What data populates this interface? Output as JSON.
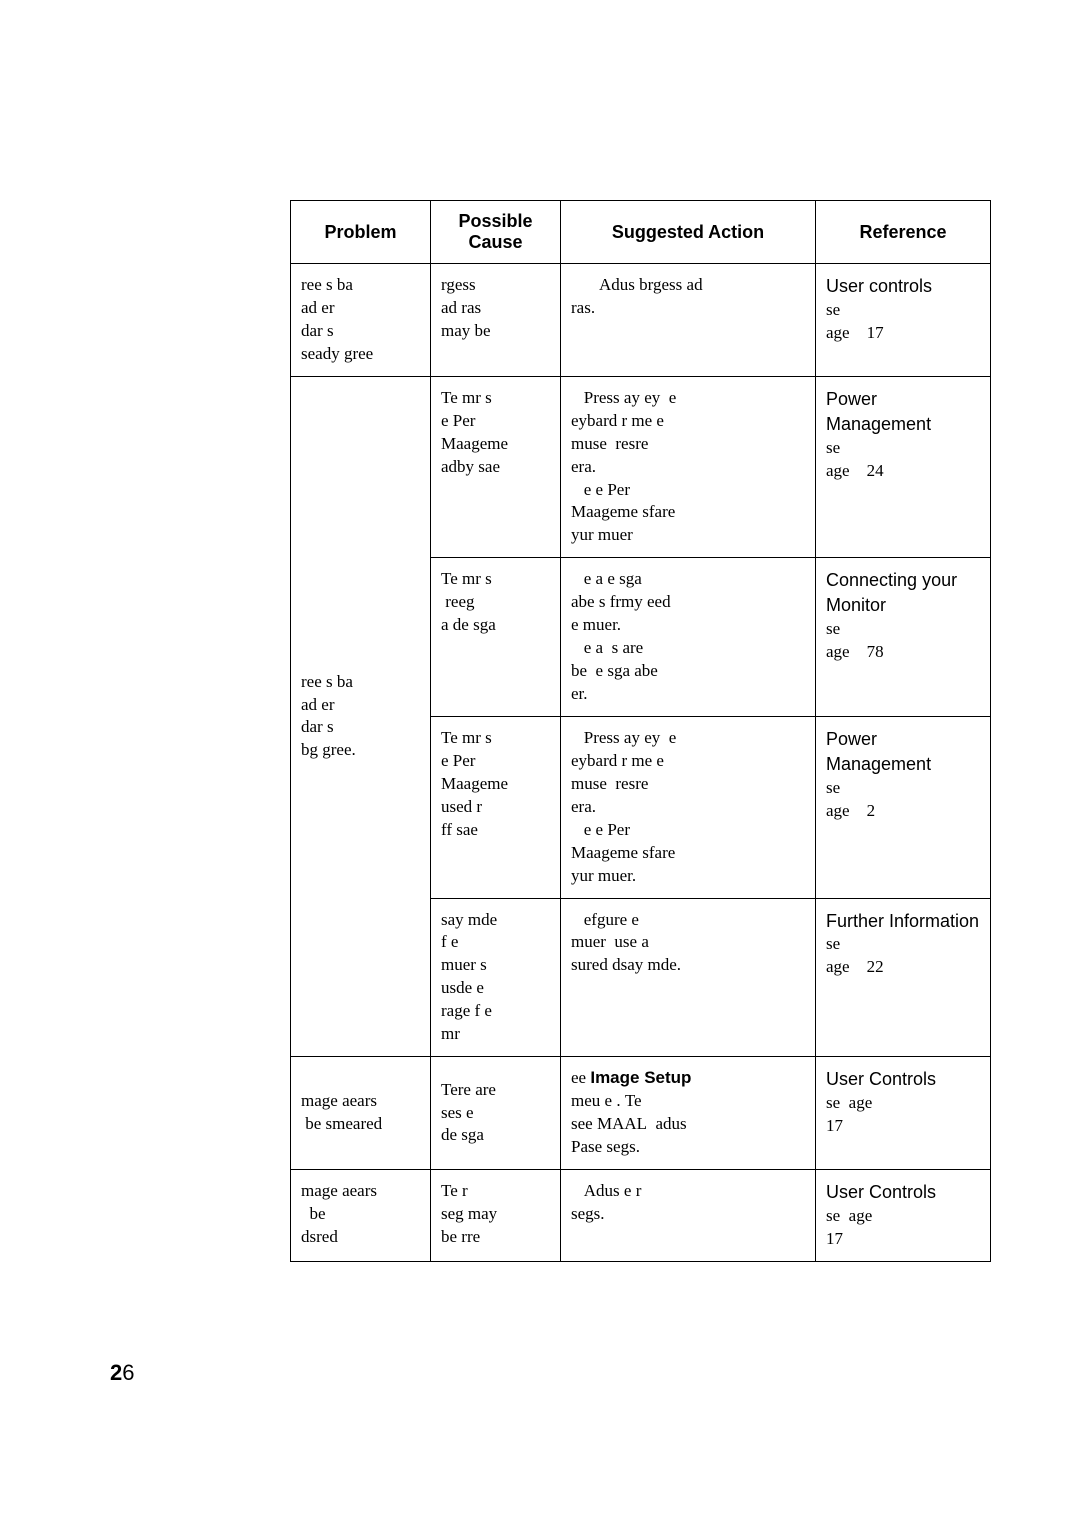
{
  "header": {
    "problem": "Problem",
    "cause": "Possible Cause",
    "action": "Suggested Action",
    "reference": "Reference"
  },
  "rows": {
    "r1": {
      "problem": "ree s ba\nad er\ndar s\nseady gree",
      "cause": "rgess\nad ras\nmay be",
      "action_indent": " ",
      "action_l1": "Adus brgess ad",
      "action_l2": "ras.",
      "ref_title": "User controls",
      "ref_tail": "se\nage    17"
    },
    "r2_problem": "ree s ba\nad er\ndar s\nbg gree.",
    "r2a": {
      "cause": "Te mr s\ne Per\nMaageme\nadby sae",
      "action": "   Press ay ey  e\neybard r me e\nmuse  resre\nera.\n   e e Per\nMaageme sfare\nyur muer",
      "ref_title": "Power Management",
      "ref_tail": "se\nage    24"
    },
    "r2b": {
      "cause": "Te mr s\n reeg\na de sga",
      "action": "   e a e sga\nabe s frmy eed\ne muer.\n   e a  s are\nbe  e sga abe\ner.",
      "ref_title": "Connecting your Monitor",
      "ref_tail": "se\nage    78"
    },
    "r2c": {
      "cause": "Te mr s\ne Per\nMaageme\nused r\nff sae",
      "action": "   Press ay ey  e\neybard r me e\nmuse  resre\nera.\n   e e Per\nMaageme sfare\nyur muer.",
      "ref_title": "Power Management",
      "ref_tail": "se\nage    2"
    },
    "r2d": {
      "cause": "say mde\nf e\nmuer s\nusde e\nrage f e\nmr",
      "action": "   efgure e\nmuer  use a\nsured dsay mde.",
      "ref_title": "Further Information",
      "ref_tail": "se\nage    22"
    },
    "r3": {
      "problem": "mage aears\n be smeared",
      "cause": "Tere are\nses e\nde sga",
      "action_pre": "   ee   ",
      "action_bold": "Image Setup",
      "action_rest": "meu e . Te\nsee MAAL  adus\nPase segs.",
      "ref_title": "User Controls",
      "ref_tail": "se  age\n17"
    },
    "r4": {
      "problem": "mage aears\n  be\ndsred",
      "cause": "Te r\nseg may\nbe rre",
      "action": "   Adus e r\nsegs.",
      "ref_title": "User Controls",
      "ref_tail": "se  age\n17"
    }
  },
  "page": {
    "bold": "2",
    "rest": "6"
  }
}
